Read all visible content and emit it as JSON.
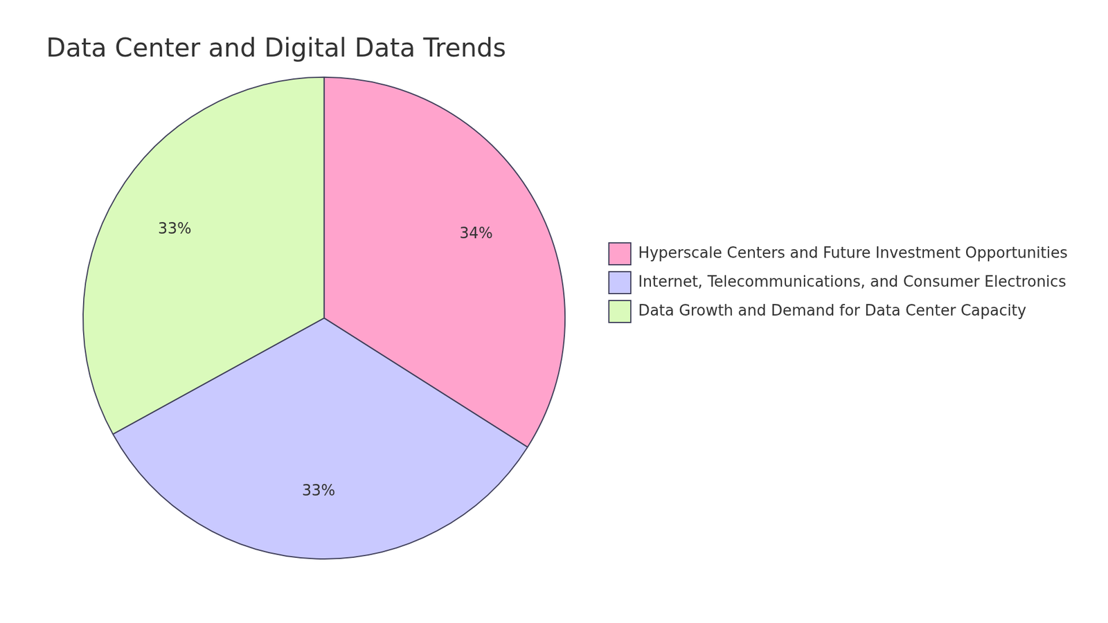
{
  "chart_data": {
    "type": "pie",
    "title": "Data Center and Digital Data Trends",
    "categories": [
      "Hyperscale Centers and Future Investment Opportunities",
      "Internet, Telecommunications, and Consumer Electronics",
      "Data Growth and Demand for Data Center Capacity"
    ],
    "values": [
      34,
      33,
      33
    ],
    "value_labels": [
      "34%",
      "33%",
      "33%"
    ],
    "colors": [
      "#ffa3cc",
      "#c9c9ff",
      "#dafabb"
    ],
    "data_labels": true,
    "legend": "right"
  }
}
